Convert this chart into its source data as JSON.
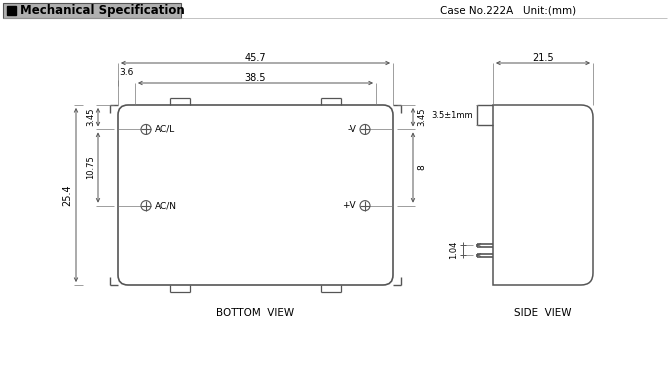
{
  "title_text": "Mechanical Specification",
  "case_info": "Case No.222A   Unit:(mm)",
  "bottom_view_label": "BOTTOM  VIEW",
  "side_view_label": "SIDE  VIEW",
  "dim_45_7": "45.7",
  "dim_38_5": "38.5",
  "dim_3_6": "3.6",
  "dim_3_45_left": "3.45",
  "dim_3_45_right": "3.45",
  "dim_10_75": "10.75",
  "dim_25_4": "25.4",
  "dim_8": "8",
  "dim_21_5": "21.5",
  "dim_3_5": "3.5±1mm",
  "dim_1_04": "1.04",
  "label_ACL": "AC/L",
  "label_ACN": "AC/N",
  "label_minusV": "-V",
  "label_plusV": "+V",
  "line_color": "#555555",
  "bg_color": "#ffffff",
  "title_bg": "#b0b0b0",
  "font_size_dims": 6.5,
  "font_size_title": 8.5,
  "font_size_view": 7.5,
  "font_size_pin": 6.5,
  "font_size_case": 7.5
}
